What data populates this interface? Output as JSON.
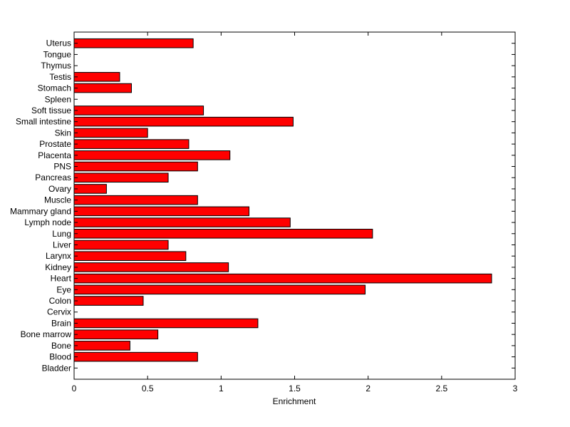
{
  "chart_data": {
    "type": "bar",
    "orientation": "horizontal",
    "title": "",
    "xlabel": "Enrichment",
    "ylabel": "",
    "xlim": [
      0,
      3
    ],
    "xticks": [
      "0",
      "0.5",
      "1",
      "1.5",
      "2",
      "2.5",
      "3"
    ],
    "grid": false,
    "bar_color": "#ff0000",
    "bar_edge_color": "#000000",
    "categories": [
      "Bladder",
      "Blood",
      "Bone",
      "Bone marrow",
      "Brain",
      "Cervix",
      "Colon",
      "Eye",
      "Heart",
      "Kidney",
      "Larynx",
      "Liver",
      "Lung",
      "Lymph node",
      "Mammary gland",
      "Muscle",
      "Ovary",
      "Pancreas",
      "PNS",
      "Placenta",
      "Prostate",
      "Skin",
      "Small intestine",
      "Soft tissue",
      "Spleen",
      "Stomach",
      "Testis",
      "Thymus",
      "Tongue",
      "Uterus"
    ],
    "values": [
      0,
      0.84,
      0.38,
      0.57,
      1.25,
      0,
      0.47,
      1.98,
      2.84,
      1.05,
      0.76,
      0.64,
      2.03,
      1.47,
      1.19,
      0.84,
      0.22,
      0.64,
      0.84,
      1.06,
      0.78,
      0.5,
      1.49,
      0.88,
      0,
      0.39,
      0.31,
      0,
      0,
      0.81
    ]
  }
}
